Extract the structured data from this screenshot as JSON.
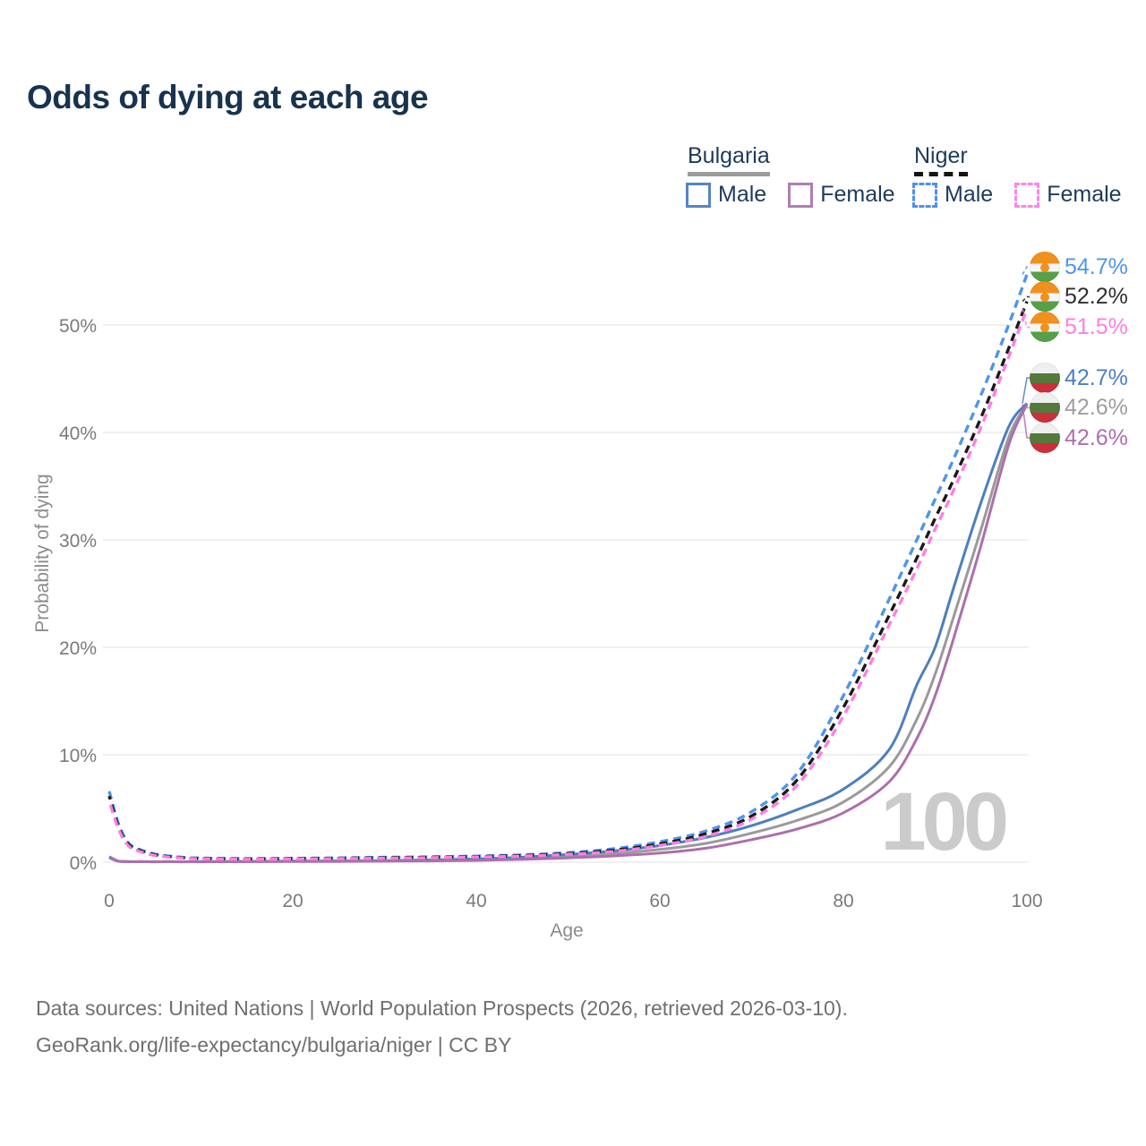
{
  "title": "Odds of dying at each age",
  "legend": {
    "groups": [
      {
        "country": "Bulgaria",
        "line_style": "solid",
        "items": [
          {
            "label": "Male"
          },
          {
            "label": "Female"
          }
        ]
      },
      {
        "country": "Niger",
        "line_style": "dashed",
        "items": [
          {
            "label": "Male"
          },
          {
            "label": "Female"
          }
        ]
      }
    ]
  },
  "colors": {
    "title": "#17334f",
    "legend_text": "#1e3a5c",
    "axis_text": "#7a7a7a",
    "axis_title": "#8c8c8c",
    "grid": "#e7e7e7",
    "watermark": "#cbcbcb",
    "footer": "#6f6f6f",
    "bulgaria_underline": "#9b9b9b",
    "niger_underline": "#141414"
  },
  "flags": {
    "bulgaria": {
      "white": "#efefef",
      "green": "#54793b",
      "red": "#cc2f3b"
    },
    "niger": {
      "orange": "#f0911f",
      "white": "#f6f6f6",
      "green": "#57a04a"
    }
  },
  "end_labels": [
    {
      "country": "niger",
      "value": "54.7%",
      "color": "#4e95ef"
    },
    {
      "country": "niger",
      "value": "52.2%",
      "color": "#2f2f2f"
    },
    {
      "country": "niger",
      "value": "51.5%",
      "color": "#ff7ee3"
    },
    {
      "country": "bulgaria",
      "value": "42.7%",
      "color": "#4a7fc1"
    },
    {
      "country": "bulgaria",
      "value": "42.6%",
      "color": "#9e9e9e"
    },
    {
      "country": "bulgaria",
      "value": "42.6%",
      "color": "#ad6fad"
    }
  ],
  "watermark": "100",
  "footer": {
    "line1": "Data sources: United Nations | World Population Prospects (2026, retrieved 2026-03-10).",
    "line2": "GeoRank.org/life-expectancy/bulgaria/niger | CC BY"
  },
  "chart_data": {
    "type": "line",
    "title": "Odds of dying at each age",
    "xlabel": "Age",
    "ylabel": "Probability of dying",
    "xlim": [
      0,
      100
    ],
    "ylim": [
      0,
      55
    ],
    "xticks": [
      0,
      20,
      40,
      60,
      80,
      100
    ],
    "yticks": [
      0,
      10,
      20,
      30,
      40,
      50
    ],
    "ytick_suffix": "%",
    "grid": "horizontal",
    "legend_position": "top-right",
    "ages": [
      0,
      1,
      2,
      3,
      5,
      8,
      10,
      15,
      20,
      25,
      30,
      35,
      40,
      45,
      50,
      55,
      60,
      65,
      70,
      75,
      80,
      85,
      88,
      90,
      92,
      95,
      98,
      100
    ],
    "series": [
      {
        "id": "bulgaria-all",
        "name": "Bulgaria Both sexes",
        "color": "#9a9a9a",
        "dash": false,
        "end_label": "42.6%",
        "values": [
          0.45,
          0.09,
          0.05,
          0.045,
          0.035,
          0.035,
          0.04,
          0.06,
          0.08,
          0.1,
          0.12,
          0.17,
          0.24,
          0.36,
          0.55,
          0.8,
          1.18,
          1.75,
          2.7,
          3.9,
          5.6,
          8.9,
          13.3,
          17.5,
          22.8,
          31.0,
          39.5,
          42.6
        ]
      },
      {
        "id": "bulgaria-male",
        "name": "Bulgaria Male",
        "color": "#4d7fbe",
        "dash": false,
        "end_label": "42.7%",
        "values": [
          0.5,
          0.1,
          0.06,
          0.05,
          0.04,
          0.04,
          0.05,
          0.07,
          0.1,
          0.12,
          0.15,
          0.21,
          0.3,
          0.46,
          0.72,
          1.05,
          1.55,
          2.3,
          3.4,
          4.9,
          6.8,
          10.5,
          16.5,
          20.0,
          25.5,
          33.5,
          40.5,
          42.7
        ]
      },
      {
        "id": "bulgaria-female",
        "name": "Bulgaria Female",
        "color": "#ad6fad",
        "dash": false,
        "end_label": "42.6%",
        "values": [
          0.4,
          0.08,
          0.05,
          0.04,
          0.03,
          0.03,
          0.035,
          0.05,
          0.06,
          0.07,
          0.09,
          0.12,
          0.17,
          0.26,
          0.4,
          0.58,
          0.85,
          1.3,
          2.1,
          3.1,
          4.6,
          7.5,
          11.5,
          15.5,
          20.8,
          29.5,
          38.8,
          42.6
        ]
      },
      {
        "id": "niger-male",
        "name": "Niger Male",
        "color": "#4e95ef",
        "dash": true,
        "end_label": "54.7%",
        "values": [
          6.6,
          3.6,
          1.9,
          1.3,
          0.75,
          0.45,
          0.38,
          0.33,
          0.36,
          0.4,
          0.45,
          0.5,
          0.57,
          0.68,
          0.88,
          1.25,
          1.9,
          2.9,
          4.7,
          8.3,
          15.5,
          24.5,
          30.0,
          33.8,
          37.5,
          43.5,
          50.0,
          54.7
        ]
      },
      {
        "id": "niger-all",
        "name": "Niger Both sexes",
        "color": "#1a1a1a",
        "dash": true,
        "end_label": "52.2%",
        "values": [
          6.15,
          3.3,
          1.75,
          1.2,
          0.68,
          0.42,
          0.35,
          0.3,
          0.33,
          0.37,
          0.41,
          0.46,
          0.52,
          0.62,
          0.8,
          1.12,
          1.7,
          2.65,
          4.3,
          7.7,
          14.4,
          23.0,
          28.3,
          32.0,
          35.6,
          41.4,
          47.8,
          52.2
        ]
      },
      {
        "id": "niger-female",
        "name": "Niger Female",
        "color": "#ff7ee3",
        "dash": true,
        "end_label": "51.5%",
        "values": [
          5.7,
          3.1,
          1.6,
          1.1,
          0.62,
          0.38,
          0.32,
          0.27,
          0.3,
          0.33,
          0.37,
          0.42,
          0.48,
          0.57,
          0.73,
          1.0,
          1.55,
          2.4,
          4.0,
          7.2,
          13.6,
          22.1,
          27.3,
          31.0,
          34.6,
          40.5,
          47.0,
          51.5
        ]
      }
    ]
  }
}
